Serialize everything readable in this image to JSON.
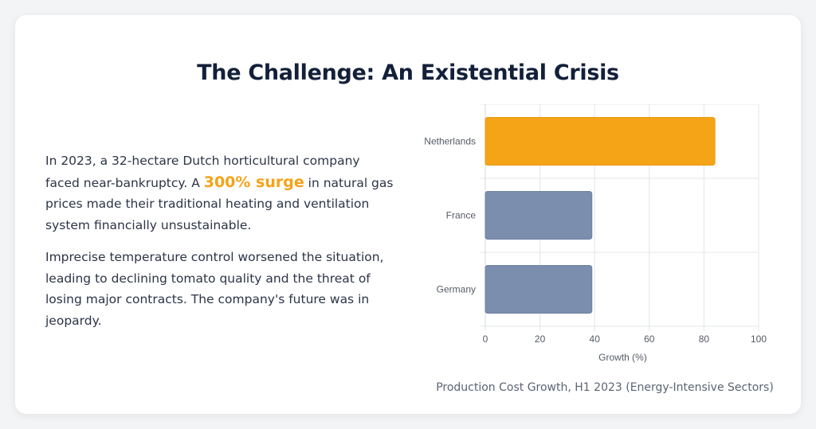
{
  "header": {
    "title": "The Challenge: An Existential Crisis"
  },
  "body": {
    "p1_before": "In 2023, a 32-hectare Dutch horticultural company faced near-bankruptcy. A ",
    "p1_highlight": "300% surge",
    "p1_after": " in natural gas prices made their traditional heating and ventilation system financially unsustainable.",
    "p2": "Imprecise temperature control worsened the situation, leading to declining tomato quality and the threat of losing major contracts. The company's future was in jeopardy."
  },
  "caption": "Production Cost Growth, H1 2023 (Energy-Intensive Sectors)",
  "colors": {
    "highlight": "#f5a218",
    "bar_primary": "#f5a418",
    "bar_secondary": "#7b8ead"
  },
  "chart_data": {
    "type": "bar",
    "orientation": "horizontal",
    "categories": [
      "Netherlands",
      "France",
      "Germany"
    ],
    "values": [
      84,
      39,
      39
    ],
    "bar_colors": [
      "#f5a418",
      "#7b8ead",
      "#7b8ead"
    ],
    "xlabel": "Growth (%)",
    "ylabel": "",
    "xlim": [
      0,
      100
    ],
    "xticks": [
      0,
      20,
      40,
      60,
      80,
      100
    ],
    "grid": true
  }
}
